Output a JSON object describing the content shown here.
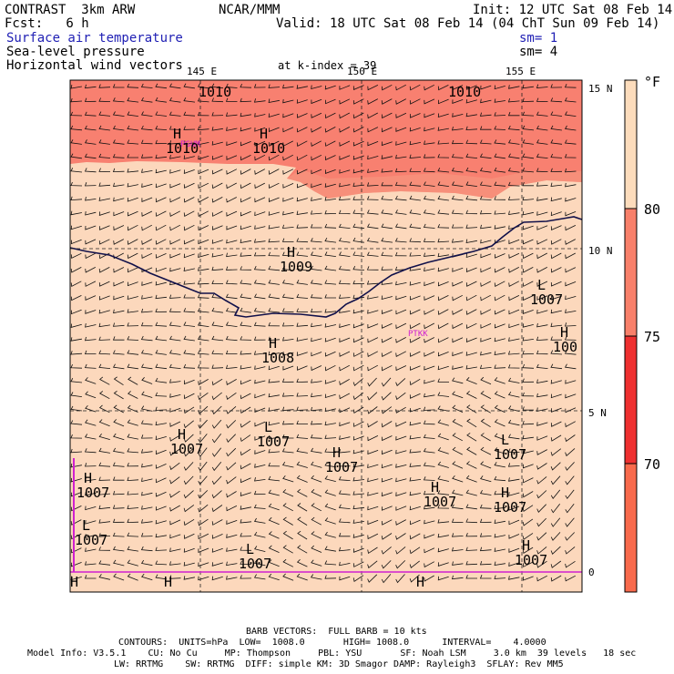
{
  "header": {
    "title_left": "CONTRAST  3km ARW",
    "title_center": "NCAR/MMM",
    "init": "Init: 12 UTC Sat 08 Feb 14",
    "fcst": "Fcst:   6 h",
    "valid": "Valid: 18 UTC Sat 08 Feb 14 (04 ChT Sun 09 Feb 14)",
    "field1": "Surface air temperature",
    "field2": "Sea-level pressure",
    "field3": "Horizontal wind vectors",
    "sm1": "sm= 1",
    "sm2": "sm= 4",
    "k_index": "at k-index = 39"
  },
  "map": {
    "lon_labels": [
      "145 E",
      "150 E",
      "155 E"
    ],
    "lat_labels": [
      "15 N",
      "10 N",
      "5 N",
      "0"
    ],
    "stations": [
      "PGUM",
      "PTKK"
    ],
    "pressure_labels": [
      {
        "type": "H",
        "value": "1010"
      },
      {
        "type": "H",
        "value": "1010"
      },
      {
        "type": "H",
        "value": "1009"
      },
      {
        "type": "H",
        "value": "1008"
      },
      {
        "type": "L",
        "value": "1007"
      },
      {
        "type": "H",
        "value": "1007"
      },
      {
        "type": "L",
        "value": "1007"
      },
      {
        "type": "H",
        "value": "1007"
      },
      {
        "type": "H",
        "value": "1007"
      },
      {
        "type": "L",
        "value": "1007"
      },
      {
        "type": "H",
        "value": "1007"
      },
      {
        "type": "H",
        "value": "1007"
      },
      {
        "type": "L",
        "value": "1007"
      },
      {
        "type": "L",
        "value": "1007"
      },
      {
        "type": "H",
        "value": "1007"
      },
      {
        "type": "H",
        "value": "100"
      }
    ],
    "extra_h": [
      "H",
      "H",
      "H"
    ],
    "top_contour_labels": [
      "1010",
      "1010"
    ]
  },
  "colorbar": {
    "unit": "°F",
    "labels": [
      "80",
      "75",
      "70"
    ],
    "colors": {
      "c80plus": "#fcdcbc",
      "c75_80": "#f8806a",
      "c70_75": "#ee3030",
      "c65_70": "#f86a4c",
      "field_main": "#fcd8bc",
      "field_warm": "#f88070"
    }
  },
  "footer": {
    "line1": "BARB VECTORS:  FULL BARB = 10 kts",
    "line2": "CONTOURS:  UNITS=hPa  LOW=  1008.0       HIGH= 1008.0      INTERVAL=    4.0000",
    "line3": "Model Info: V3.5.1    CU: No Cu     MP: Thompson     PBL: YSU       SF: Noah LSM     3.0 km  39 levels   18 sec",
    "line4": "LW: RRTMG    SW: RRTMG  DIFF: simple KM: 3D Smagor DAMP: Rayleigh3  SFLAY: Rev MM5"
  }
}
